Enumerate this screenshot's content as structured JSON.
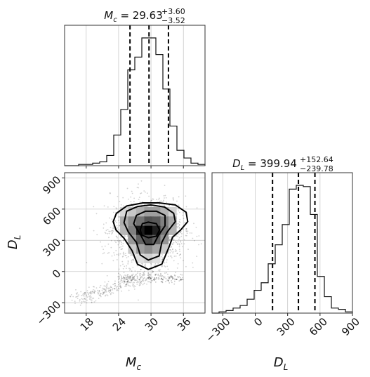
{
  "chart_data": [
    {
      "type": "bar",
      "panel": "histogram",
      "variable": "Mc",
      "title": {
        "text": "M_c = 29.63",
        "main": "29.63",
        "plus": "+3.60",
        "minus": "−3.52"
      },
      "xlim": [
        14,
        40
      ],
      "bin_edges": [
        14,
        15.3,
        16.6,
        17.9,
        19.2,
        20.5,
        21.8,
        23.1,
        24.4,
        25.7,
        27.0,
        28.3,
        29.6,
        30.9,
        32.2,
        33.5,
        34.8,
        36.1,
        37.4,
        38.7,
        40
      ],
      "counts": [
        0,
        0,
        1,
        1,
        2,
        3,
        8,
        24,
        44,
        75,
        85,
        100,
        100,
        87,
        60,
        31,
        12,
        6,
        2,
        1
      ],
      "quantiles": [
        26.11,
        29.63,
        33.23
      ],
      "xticks": [
        18,
        24,
        30,
        36
      ]
    },
    {
      "type": "bar",
      "panel": "histogram",
      "variable": "DL",
      "title": {
        "main": "399.94",
        "plus": "+152.64",
        "minus": "−239.78"
      },
      "xlim": [
        -400,
        900
      ],
      "bin_edges": [
        -400,
        -335,
        -270,
        -205,
        -140,
        -75,
        -10,
        55,
        120,
        185,
        250,
        315,
        380,
        445,
        510,
        575,
        640,
        705,
        770,
        835,
        900
      ],
      "counts": [
        0,
        1,
        2,
        4,
        6,
        11,
        18,
        24,
        39,
        54,
        70,
        98,
        101,
        100,
        78,
        29,
        13,
        4,
        3,
        1
      ],
      "quantiles": [
        160.16,
        399.94,
        552.58
      ],
      "xticks": [
        -300,
        0,
        300,
        600,
        900
      ],
      "xtick_labels": [
        "−300",
        "0",
        "300",
        "600",
        "900"
      ]
    },
    {
      "type": "scatter",
      "panel": "2d-density",
      "x_variable": "Mc",
      "y_variable": "DL",
      "xlim": [
        14,
        40
      ],
      "ylim": [
        -400,
        950
      ],
      "xticks": [
        18,
        24,
        30,
        36
      ],
      "yticks": [
        -300,
        0,
        300,
        600,
        900
      ],
      "ytick_labels": [
        "−300",
        "0",
        "300",
        "600",
        "900"
      ],
      "density_cells": [
        {
          "x": 25.0,
          "y": 575,
          "level": 0.85
        },
        {
          "x": 26.5,
          "y": 575,
          "level": 0.78
        },
        {
          "x": 28.0,
          "y": 575,
          "level": 0.7
        },
        {
          "x": 29.5,
          "y": 575,
          "level": 0.62
        },
        {
          "x": 31.0,
          "y": 575,
          "level": 0.62
        },
        {
          "x": 32.5,
          "y": 575,
          "level": 0.7
        },
        {
          "x": 34.0,
          "y": 575,
          "level": 0.82
        },
        {
          "x": 25.0,
          "y": 485,
          "level": 0.68
        },
        {
          "x": 26.5,
          "y": 485,
          "level": 0.55
        },
        {
          "x": 28.0,
          "y": 485,
          "level": 0.45
        },
        {
          "x": 29.5,
          "y": 485,
          "level": 0.32
        },
        {
          "x": 31.0,
          "y": 485,
          "level": 0.35
        },
        {
          "x": 32.5,
          "y": 485,
          "level": 0.5
        },
        {
          "x": 34.0,
          "y": 485,
          "level": 0.65
        },
        {
          "x": 25.0,
          "y": 395,
          "level": 0.72
        },
        {
          "x": 26.5,
          "y": 395,
          "level": 0.5
        },
        {
          "x": 28.0,
          "y": 395,
          "level": 0.1
        },
        {
          "x": 29.5,
          "y": 395,
          "level": 0.0
        },
        {
          "x": 31.0,
          "y": 395,
          "level": 0.12
        },
        {
          "x": 32.5,
          "y": 395,
          "level": 0.45
        },
        {
          "x": 34.0,
          "y": 395,
          "level": 0.7
        },
        {
          "x": 26.5,
          "y": 305,
          "level": 0.6
        },
        {
          "x": 28.0,
          "y": 305,
          "level": 0.38
        },
        {
          "x": 29.5,
          "y": 305,
          "level": 0.28
        },
        {
          "x": 31.0,
          "y": 305,
          "level": 0.38
        },
        {
          "x": 32.5,
          "y": 305,
          "level": 0.58
        },
        {
          "x": 26.5,
          "y": 215,
          "level": 0.8
        },
        {
          "x": 28.0,
          "y": 215,
          "level": 0.62
        },
        {
          "x": 29.5,
          "y": 215,
          "level": 0.55
        },
        {
          "x": 31.0,
          "y": 215,
          "level": 0.65
        },
        {
          "x": 32.5,
          "y": 215,
          "level": 0.8
        },
        {
          "x": 28.0,
          "y": 125,
          "level": 0.88
        },
        {
          "x": 29.5,
          "y": 125,
          "level": 0.82
        },
        {
          "x": 31.0,
          "y": 125,
          "level": 0.88
        }
      ],
      "contours": [
        [
          [
            23.0,
            480
          ],
          [
            23.6,
            560
          ],
          [
            25.5,
            630
          ],
          [
            28.5,
            660
          ],
          [
            31.5,
            660
          ],
          [
            34.5,
            640
          ],
          [
            36.5,
            570
          ],
          [
            36.8,
            480
          ],
          [
            35.5,
            400
          ],
          [
            34.0,
            330
          ],
          [
            33.3,
            230
          ],
          [
            32.0,
            70
          ],
          [
            29.5,
            20
          ],
          [
            27.5,
            70
          ],
          [
            26.5,
            200
          ],
          [
            25.0,
            320
          ],
          [
            23.5,
            400
          ],
          [
            23.0,
            480
          ]
        ],
        [
          [
            25.0,
            470
          ],
          [
            25.5,
            580
          ],
          [
            27.5,
            625
          ],
          [
            30.0,
            640
          ],
          [
            32.5,
            620
          ],
          [
            34.2,
            560
          ],
          [
            34.5,
            480
          ],
          [
            33.0,
            380
          ],
          [
            32.0,
            280
          ],
          [
            31.5,
            150
          ],
          [
            29.5,
            110
          ],
          [
            28.0,
            160
          ],
          [
            27.3,
            280
          ],
          [
            25.8,
            380
          ],
          [
            25.0,
            470
          ]
        ],
        [
          [
            26.8,
            460
          ],
          [
            27.3,
            540
          ],
          [
            29.0,
            580
          ],
          [
            31.0,
            580
          ],
          [
            32.6,
            540
          ],
          [
            32.6,
            440
          ],
          [
            31.3,
            340
          ],
          [
            30.5,
            260
          ],
          [
            29.0,
            260
          ],
          [
            28.2,
            340
          ],
          [
            26.8,
            460
          ]
        ],
        [
          [
            28.0,
            400
          ],
          [
            28.4,
            460
          ],
          [
            29.5,
            475
          ],
          [
            31.0,
            460
          ],
          [
            31.6,
            400
          ],
          [
            31.0,
            340
          ],
          [
            29.5,
            325
          ],
          [
            28.3,
            350
          ],
          [
            28.0,
            400
          ]
        ]
      ]
    }
  ],
  "axis_labels": {
    "x_main": "M_c",
    "x_main_base": "M",
    "x_main_sub": "c",
    "y_main": "D_L",
    "y_main_base": "D",
    "y_main_sub": "L",
    "x_right": "D_L",
    "x_right_base": "D",
    "x_right_sub": "L"
  },
  "titles": {
    "mc_symbol_base": "M",
    "mc_symbol_sub": "c",
    "dl_symbol_base": "D",
    "dl_symbol_sub": "L"
  }
}
